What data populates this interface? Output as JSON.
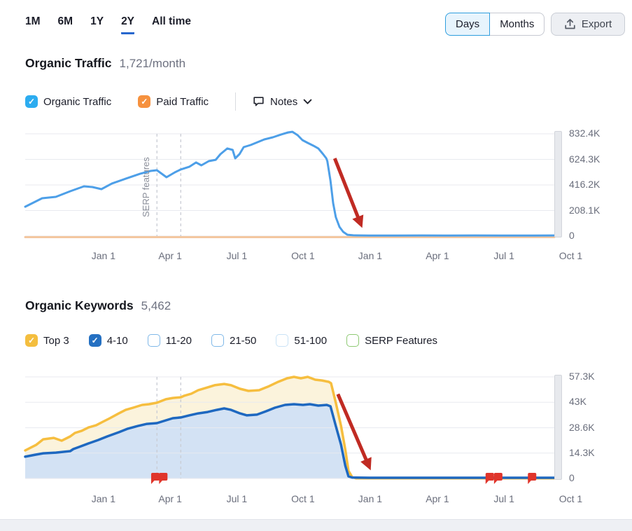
{
  "header": {
    "range_tabs": [
      {
        "label": "1M",
        "active": false
      },
      {
        "label": "6M",
        "active": false
      },
      {
        "label": "1Y",
        "active": false
      },
      {
        "label": "2Y",
        "active": true
      },
      {
        "label": "All time",
        "active": false
      }
    ],
    "granularity": {
      "options": [
        {
          "label": "Days",
          "selected": true
        },
        {
          "label": "Months",
          "selected": false
        }
      ]
    },
    "export_label": "Export"
  },
  "organic_traffic": {
    "title": "Organic Traffic",
    "value": "1,721/month",
    "legend": [
      {
        "label": "Organic Traffic",
        "checked": true,
        "color": "#2CACF0"
      },
      {
        "label": "Paid Traffic",
        "checked": true,
        "color": "#F6913E"
      }
    ],
    "notes_label": "Notes"
  },
  "organic_keywords": {
    "title": "Organic Keywords",
    "value": "5,462",
    "legend": [
      {
        "label": "Top 3",
        "checked": true,
        "color": "#F4BE3F"
      },
      {
        "label": "4-10",
        "checked": true,
        "color": "#2470C2"
      },
      {
        "label": "11-20",
        "checked": false,
        "color": "#7FB8E8"
      },
      {
        "label": "21-50",
        "checked": false,
        "color": "#7FB8E8"
      },
      {
        "label": "51-100",
        "checked": false,
        "color": "#C9E2F6"
      },
      {
        "label": "SERP Features",
        "checked": false,
        "color": "#8EC973"
      }
    ]
  },
  "chart_data": [
    {
      "type": "line",
      "title": "Organic Traffic",
      "ymax": 832400,
      "y_ticks": {
        "labels": [
          "832.4K",
          "624.3K",
          "416.2K",
          "208.1K",
          "0"
        ],
        "values": [
          832400,
          624300,
          416200,
          208100,
          0
        ]
      },
      "x_ticks": {
        "labels": [
          "Jan 1",
          "Apr 1",
          "Jul 1",
          "Oct 1",
          "Jan 1",
          "Apr 1",
          "Jul 1",
          "Oct 1"
        ],
        "fracs": [
          0.148,
          0.274,
          0.4,
          0.525,
          0.652,
          0.779,
          0.905,
          1.031
        ]
      },
      "vlines": {
        "fracs": [
          0.249,
          0.294
        ],
        "label": "SERP features"
      },
      "series": [
        {
          "name": "Paid Traffic",
          "color": "#F3C7A0",
          "width": 3,
          "points": [
            [
              0,
              0
            ],
            [
              1.0,
              0
            ]
          ]
        },
        {
          "name": "Organic Traffic",
          "color": "#4D9FE8",
          "width": 3,
          "points": [
            [
              0.0,
              239000
            ],
            [
              0.032,
              308000
            ],
            [
              0.058,
              319000
            ],
            [
              0.085,
              365000
            ],
            [
              0.111,
              405000
            ],
            [
              0.127,
              399000
            ],
            [
              0.144,
              382000
            ],
            [
              0.164,
              428000
            ],
            [
              0.19,
              467000
            ],
            [
              0.217,
              507000
            ],
            [
              0.237,
              530000
            ],
            [
              0.249,
              536000
            ],
            [
              0.267,
              479000
            ],
            [
              0.283,
              519000
            ],
            [
              0.294,
              542000
            ],
            [
              0.31,
              564000
            ],
            [
              0.323,
              599000
            ],
            [
              0.333,
              576000
            ],
            [
              0.347,
              610000
            ],
            [
              0.36,
              621000
            ],
            [
              0.369,
              667000
            ],
            [
              0.382,
              713000
            ],
            [
              0.392,
              701000
            ],
            [
              0.397,
              633000
            ],
            [
              0.405,
              667000
            ],
            [
              0.413,
              724000
            ],
            [
              0.426,
              741000
            ],
            [
              0.439,
              764000
            ],
            [
              0.452,
              787000
            ],
            [
              0.468,
              804000
            ],
            [
              0.484,
              827000
            ],
            [
              0.497,
              844000
            ],
            [
              0.505,
              849000
            ],
            [
              0.515,
              821000
            ],
            [
              0.524,
              781000
            ],
            [
              0.534,
              758000
            ],
            [
              0.545,
              735000
            ],
            [
              0.554,
              713000
            ],
            [
              0.563,
              667000
            ],
            [
              0.569,
              633000
            ],
            [
              0.571,
              610000
            ],
            [
              0.577,
              450000
            ],
            [
              0.582,
              268000
            ],
            [
              0.587,
              154000
            ],
            [
              0.594,
              74000
            ],
            [
              0.601,
              34000
            ],
            [
              0.609,
              11000
            ],
            [
              0.62,
              6000
            ],
            [
              0.65,
              4000
            ],
            [
              0.7,
              4000
            ],
            [
              0.75,
              5000
            ],
            [
              0.8,
              4000
            ],
            [
              0.85,
              5000
            ],
            [
              0.9,
              4000
            ],
            [
              0.95,
              4000
            ],
            [
              1.0,
              5000
            ]
          ]
        }
      ],
      "arrow": {
        "x1": 0.585,
        "y1": 0.24,
        "x2": 0.637,
        "y2": 0.92,
        "color": "#C02B23"
      }
    },
    {
      "type": "area",
      "title": "Organic Keywords",
      "ymax": 57300,
      "y_ticks": {
        "labels": [
          "57.3K",
          "43K",
          "28.6K",
          "14.3K",
          "0"
        ],
        "values": [
          57300,
          43000,
          28600,
          14300,
          0
        ]
      },
      "x_ticks": {
        "labels": [
          "Jan 1",
          "Apr 1",
          "Jul 1",
          "Oct 1",
          "Jan 1",
          "Apr 1",
          "Jul 1",
          "Oct 1"
        ],
        "fracs": [
          0.148,
          0.274,
          0.4,
          0.525,
          0.652,
          0.779,
          0.905,
          1.031
        ]
      },
      "vlines": {
        "fracs": [
          0.249,
          0.294
        ],
        "label": ""
      },
      "series": [
        {
          "name": "Top 3",
          "color": "#F6BE3F",
          "fill": "#FBF3DC",
          "width": 3.5,
          "points": [
            [
              0.0,
              15800
            ],
            [
              0.021,
              19000
            ],
            [
              0.034,
              22100
            ],
            [
              0.054,
              22900
            ],
            [
              0.069,
              21300
            ],
            [
              0.085,
              23700
            ],
            [
              0.094,
              25700
            ],
            [
              0.107,
              26900
            ],
            [
              0.12,
              28800
            ],
            [
              0.134,
              30000
            ],
            [
              0.147,
              32000
            ],
            [
              0.16,
              34000
            ],
            [
              0.177,
              36700
            ],
            [
              0.19,
              38700
            ],
            [
              0.204,
              39900
            ],
            [
              0.221,
              41500
            ],
            [
              0.234,
              41900
            ],
            [
              0.249,
              42700
            ],
            [
              0.266,
              44700
            ],
            [
              0.279,
              45400
            ],
            [
              0.294,
              45800
            ],
            [
              0.3,
              46600
            ],
            [
              0.314,
              47800
            ],
            [
              0.327,
              49800
            ],
            [
              0.345,
              51400
            ],
            [
              0.358,
              52600
            ],
            [
              0.376,
              53300
            ],
            [
              0.389,
              52600
            ],
            [
              0.406,
              50600
            ],
            [
              0.422,
              49400
            ],
            [
              0.442,
              49800
            ],
            [
              0.459,
              51800
            ],
            [
              0.478,
              54500
            ],
            [
              0.495,
              56500
            ],
            [
              0.508,
              57300
            ],
            [
              0.521,
              56500
            ],
            [
              0.534,
              57300
            ],
            [
              0.548,
              55700
            ],
            [
              0.561,
              55300
            ],
            [
              0.574,
              54500
            ],
            [
              0.578,
              53700
            ],
            [
              0.587,
              42700
            ],
            [
              0.597,
              29600
            ],
            [
              0.605,
              16200
            ],
            [
              0.611,
              4300
            ],
            [
              0.618,
              800
            ],
            [
              0.625,
              100
            ],
            [
              0.7,
              100
            ],
            [
              0.8,
              100
            ],
            [
              0.9,
              100
            ],
            [
              1.0,
              100
            ]
          ]
        },
        {
          "name": "4-10",
          "color": "#1E68C0",
          "fill": "#D3E2F4",
          "width": 3.5,
          "points": [
            [
              0.0,
              12300
            ],
            [
              0.019,
              13400
            ],
            [
              0.034,
              14200
            ],
            [
              0.058,
              14600
            ],
            [
              0.085,
              15400
            ],
            [
              0.091,
              16600
            ],
            [
              0.102,
              17800
            ],
            [
              0.12,
              19800
            ],
            [
              0.138,
              21700
            ],
            [
              0.155,
              23700
            ],
            [
              0.177,
              26100
            ],
            [
              0.194,
              28100
            ],
            [
              0.213,
              29600
            ],
            [
              0.23,
              30800
            ],
            [
              0.249,
              31200
            ],
            [
              0.266,
              32800
            ],
            [
              0.279,
              34000
            ],
            [
              0.294,
              34400
            ],
            [
              0.31,
              35600
            ],
            [
              0.327,
              36700
            ],
            [
              0.345,
              37500
            ],
            [
              0.362,
              38700
            ],
            [
              0.376,
              39500
            ],
            [
              0.389,
              38700
            ],
            [
              0.406,
              36700
            ],
            [
              0.419,
              35600
            ],
            [
              0.438,
              36000
            ],
            [
              0.455,
              37900
            ],
            [
              0.472,
              39900
            ],
            [
              0.491,
              41500
            ],
            [
              0.508,
              41900
            ],
            [
              0.525,
              41500
            ],
            [
              0.538,
              41900
            ],
            [
              0.554,
              41100
            ],
            [
              0.57,
              41500
            ],
            [
              0.577,
              40700
            ],
            [
              0.587,
              29600
            ],
            [
              0.597,
              19000
            ],
            [
              0.605,
              7100
            ],
            [
              0.611,
              1200
            ],
            [
              0.618,
              500
            ],
            [
              0.65,
              400
            ],
            [
              0.7,
              400
            ],
            [
              0.75,
              400
            ],
            [
              0.8,
              400
            ],
            [
              0.85,
              400
            ],
            [
              0.9,
              400
            ],
            [
              0.95,
              400
            ],
            [
              1.0,
              400
            ]
          ]
        }
      ],
      "note_markers": {
        "color": "#E0352B",
        "fracs": [
          0.246,
          0.261,
          0.878,
          0.894,
          0.958
        ]
      },
      "arrow": {
        "x1": 0.591,
        "y1": 0.17,
        "x2": 0.653,
        "y2": 0.92,
        "color": "#C02B23"
      }
    }
  ]
}
